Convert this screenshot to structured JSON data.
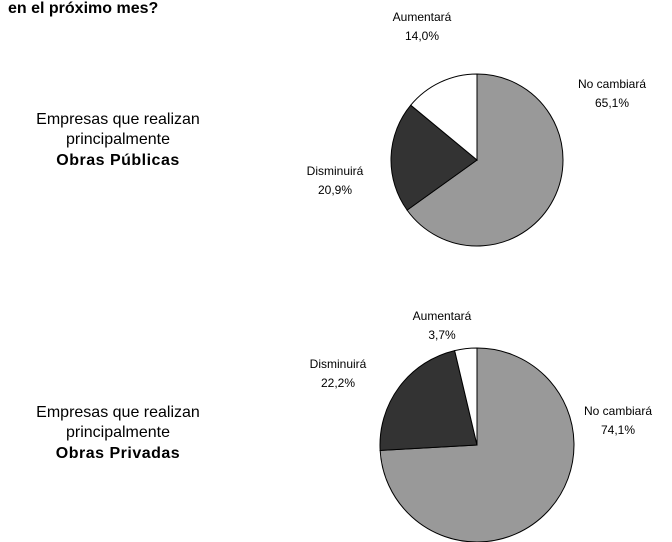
{
  "header": {
    "title": "en el próximo mes?"
  },
  "chart_data": [
    {
      "type": "pie",
      "label_lines": [
        "Empresas que realizan",
        "principalmente",
        "Obras Públicas"
      ],
      "categories": [
        "No cambiará",
        "Disminuirá",
        "Aumentará"
      ],
      "values": [
        65.1,
        20.9,
        14.0
      ],
      "value_labels": [
        "65,1%",
        "20,9%",
        "14,0%"
      ],
      "colors": [
        "#999999",
        "#333333",
        "#ffffff"
      ]
    },
    {
      "type": "pie",
      "label_lines": [
        "Empresas que realizan",
        "principalmente",
        "Obras Privadas"
      ],
      "categories": [
        "No cambiará",
        "Disminuirá",
        "Aumentará"
      ],
      "values": [
        74.1,
        22.2,
        3.7
      ],
      "value_labels": [
        "74,1%",
        "22,2%",
        "3,7%"
      ],
      "colors": [
        "#999999",
        "#333333",
        "#ffffff"
      ]
    }
  ]
}
